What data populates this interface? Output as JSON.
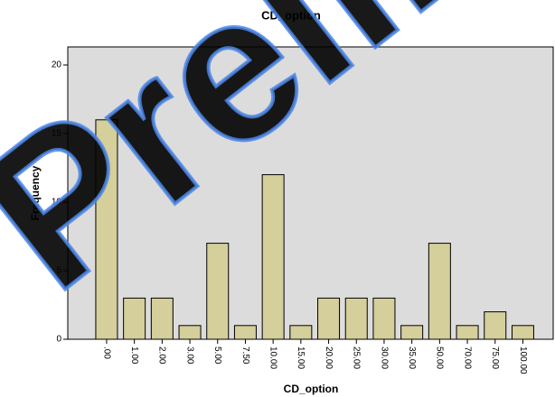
{
  "chart_data": {
    "type": "bar",
    "title": "CD_option",
    "x_label": "CD_option",
    "y_label": "Frequency",
    "categories": [
      ".00",
      "1.00",
      "2.00",
      "3.00",
      "5.00",
      "7.50",
      "10.00",
      "15.00",
      "20.00",
      "25.00",
      "30.00",
      "35.00",
      "50.00",
      "70.00",
      "75.00",
      "100.00"
    ],
    "values": [
      16,
      3,
      3,
      1,
      7,
      1,
      12,
      1,
      3,
      3,
      3,
      1,
      7,
      1,
      2,
      1
    ],
    "color": "#d4cf9b",
    "ylim": [
      0,
      20
    ],
    "yticks": [
      0,
      5,
      10,
      15,
      20
    ],
    "watermark": "Prelim"
  }
}
